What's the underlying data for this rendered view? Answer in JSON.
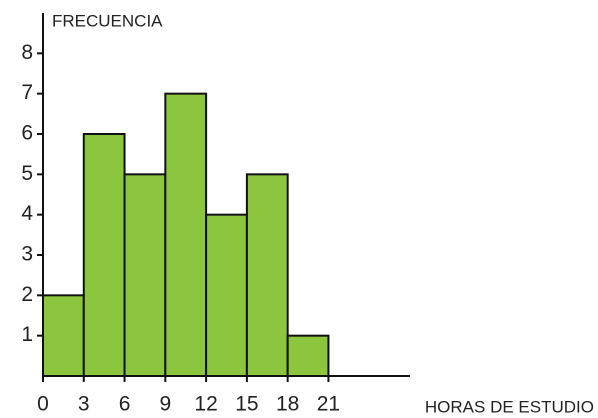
{
  "chart_data": {
    "type": "histogram",
    "y_label": "FRECUENCIA",
    "x_label": "HORAS DE ESTUDIO",
    "bins": [
      0,
      3,
      6,
      9,
      12,
      15,
      18,
      21
    ],
    "values": [
      2,
      6,
      5,
      7,
      4,
      5,
      1
    ],
    "color": "#8cc63f",
    "xlim": [
      0,
      27
    ],
    "xticks": [
      0,
      3,
      6,
      9,
      12,
      15,
      18,
      21
    ],
    "ylim": [
      0,
      9
    ],
    "yticks": [
      1,
      2,
      3,
      4,
      5,
      6,
      7,
      8
    ]
  }
}
